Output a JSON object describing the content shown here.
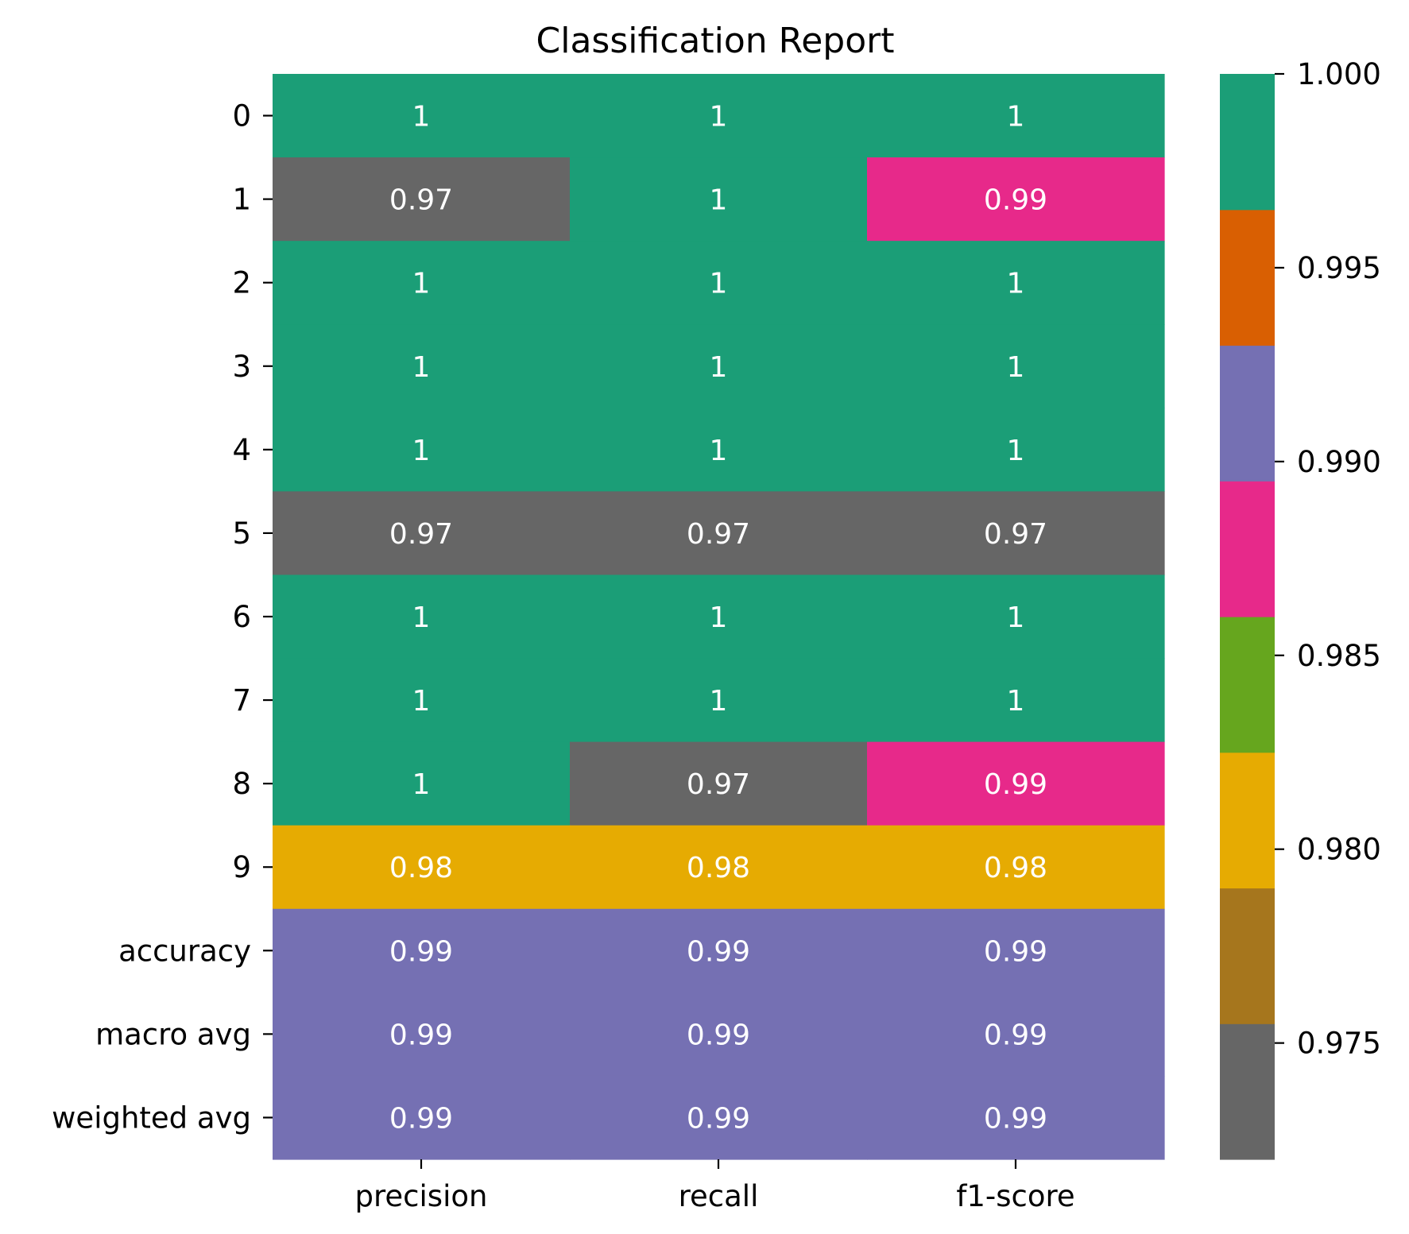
{
  "chart_data": {
    "type": "heatmap",
    "title": "Classification Report",
    "xlabel": "",
    "ylabel": "",
    "columns": [
      "precision",
      "recall",
      "f1-score"
    ],
    "rows": [
      "0",
      "1",
      "2",
      "3",
      "4",
      "5",
      "6",
      "7",
      "8",
      "9",
      "accuracy",
      "macro avg",
      "weighted avg"
    ],
    "values": [
      [
        1.0,
        1.0,
        1.0
      ],
      [
        0.97,
        1.0,
        0.986
      ],
      [
        1.0,
        1.0,
        1.0
      ],
      [
        1.0,
        1.0,
        1.0
      ],
      [
        1.0,
        1.0,
        1.0
      ],
      [
        0.97,
        0.97,
        0.97
      ],
      [
        1.0,
        1.0,
        1.0
      ],
      [
        1.0,
        1.0,
        1.0
      ],
      [
        1.0,
        0.97,
        0.988
      ],
      [
        0.98,
        0.98,
        0.98
      ],
      [
        0.99,
        0.99,
        0.99
      ],
      [
        0.99,
        0.99,
        0.99
      ],
      [
        0.99,
        0.99,
        0.99
      ]
    ],
    "annotations": [
      [
        "1",
        "1",
        "1"
      ],
      [
        "0.97",
        "1",
        "0.99"
      ],
      [
        "1",
        "1",
        "1"
      ],
      [
        "1",
        "1",
        "1"
      ],
      [
        "1",
        "1",
        "1"
      ],
      [
        "0.97",
        "0.97",
        "0.97"
      ],
      [
        "1",
        "1",
        "1"
      ],
      [
        "1",
        "1",
        "1"
      ],
      [
        "1",
        "0.97",
        "0.99"
      ],
      [
        "0.98",
        "0.98",
        "0.98"
      ],
      [
        "0.99",
        "0.99",
        "0.99"
      ],
      [
        "0.99",
        "0.99",
        "0.99"
      ],
      [
        "0.99",
        "0.99",
        "0.99"
      ]
    ],
    "colorbar": {
      "vmin": 0.972,
      "vmax": 1.0,
      "ticks": [
        "0.975",
        "0.980",
        "0.985",
        "0.990",
        "0.995",
        "1.000"
      ],
      "tick_values": [
        0.975,
        0.98,
        0.985,
        0.99,
        0.995,
        1.0
      ],
      "colors": [
        "#666666",
        "#a6761d",
        "#e6ab02",
        "#66a61e",
        "#e7298a",
        "#7570b3",
        "#d95f02",
        "#1b9e77"
      ]
    },
    "grid": false
  }
}
